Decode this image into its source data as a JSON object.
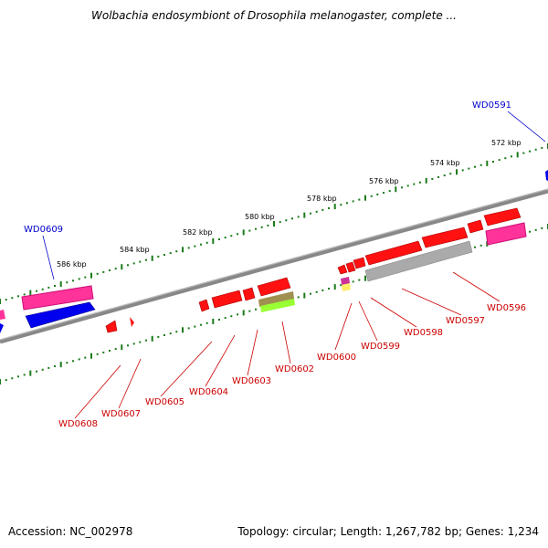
{
  "title": "Wolbachia endosymbiont of Drosophila melanogaster, complete ...",
  "footer": {
    "accession": "Accession: NC_002978",
    "summary": "Topology: circular; Length: 1,267,782 bp; Genes: 1,234"
  },
  "colors": {
    "backbone": "#888888",
    "tick": "#1a7a1a",
    "gene_label_red": "#cc0000",
    "gene_label_blue": "#0000cc",
    "red_feature": "#ff0000",
    "pink_feature": "#ff3399",
    "magenta_feature": "#cc1177",
    "blue_feature": "#0000ee",
    "gray_feature": "#aaaaaa",
    "olive_feature": "#a09050",
    "lime_feature": "#99ff33",
    "yellow_feature": "#ffee66"
  },
  "kbp_labels": [
    "572 kbp",
    "574 kbp",
    "576 kbp",
    "578 kbp",
    "580 kbp",
    "582 kbp",
    "584 kbp",
    "586 kbp"
  ],
  "gene_labels": {
    "WD0591": "WD0591",
    "WD0596": "WD0596",
    "WD0597": "WD0597",
    "WD0598": "WD0598",
    "WD0599": "WD0599",
    "WD0600": "WD0600",
    "WD0602": "WD0602",
    "WD0603": "WD0603",
    "WD0604": "WD0604",
    "WD0605": "WD0605",
    "WD0607": "WD0607",
    "WD0608": "WD0608",
    "WD0609": "WD0609"
  }
}
